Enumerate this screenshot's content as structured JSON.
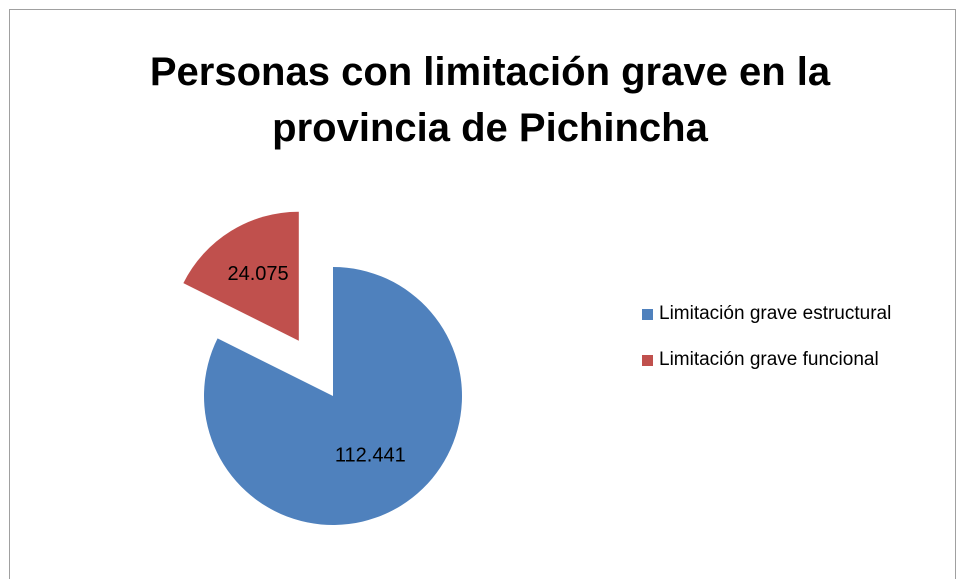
{
  "chart_data": {
    "type": "pie",
    "title": "Personas con limitación grave en la provincia de Pichincha",
    "categories": [
      "Limitación grave estructural",
      "Limitación grave funcional"
    ],
    "values": [
      112441,
      24075
    ],
    "value_labels": [
      "112.441",
      "24.075"
    ],
    "colors": [
      "#4f81bd",
      "#c0504d"
    ],
    "legend": "right"
  }
}
